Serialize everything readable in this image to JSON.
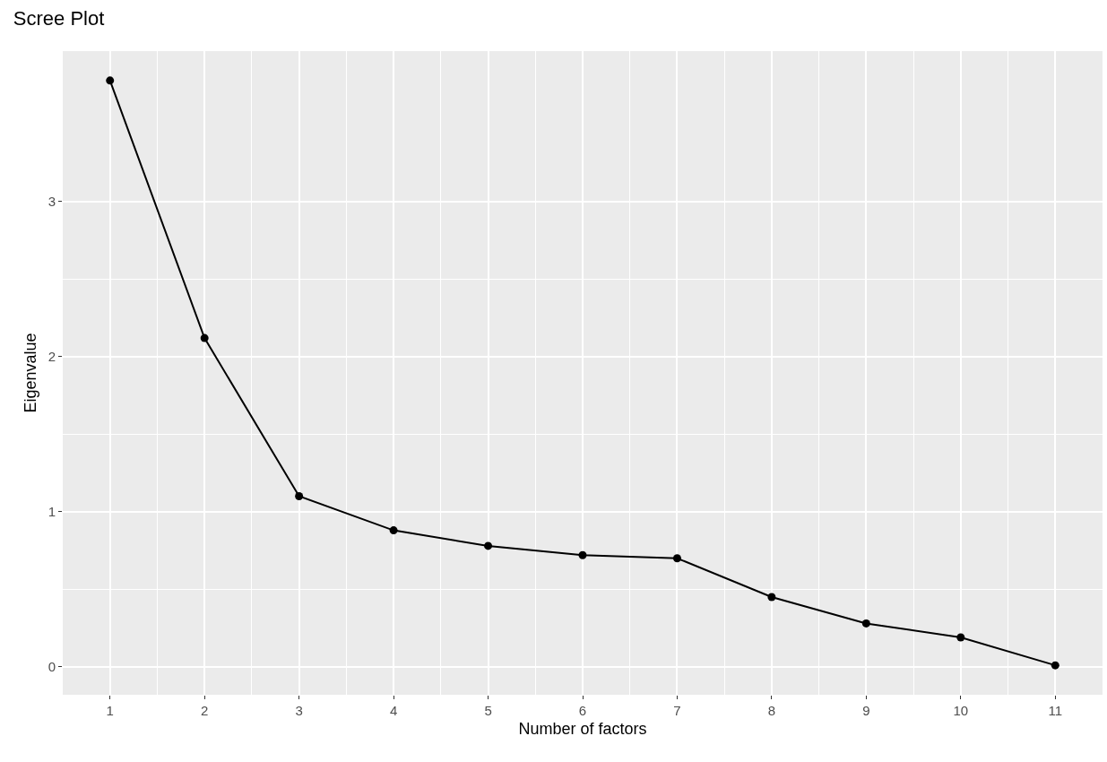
{
  "chart_data": {
    "type": "line",
    "title": "Scree Plot",
    "xlabel": "Number of factors",
    "ylabel": "Eigenvalue",
    "x": [
      1,
      2,
      3,
      4,
      5,
      6,
      7,
      8,
      9,
      10,
      11
    ],
    "series": [
      {
        "color": "#000000",
        "values": [
          3.78,
          2.12,
          1.1,
          0.88,
          0.78,
          0.72,
          0.7,
          0.45,
          0.28,
          0.19,
          0.01
        ]
      }
    ],
    "xlim": [
      0.5,
      11.5
    ],
    "xticks": [
      1,
      2,
      3,
      4,
      5,
      6,
      7,
      8,
      9,
      10,
      11
    ],
    "ylim": [
      -0.18,
      3.97
    ],
    "yticks": [
      0,
      1,
      2,
      3
    ],
    "grid": true,
    "marker": "circle",
    "line_style": "solid"
  }
}
